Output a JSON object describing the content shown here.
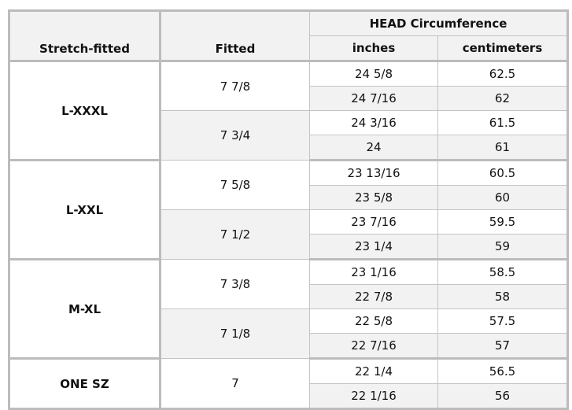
{
  "headers": {
    "stretch_fitted": "Stretch-fitted",
    "fitted": "Fitted",
    "head_circumference": "HEAD Circumference",
    "inches": "inches",
    "centimeters": "centimeters"
  },
  "groups": [
    {
      "stretch": "L-XXXL",
      "fitted": [
        {
          "size": "7 7/8",
          "rows": [
            [
              "24 5/8",
              "62.5"
            ],
            [
              "24 7/16",
              "62"
            ]
          ]
        },
        {
          "size": "7 3/4",
          "rows": [
            [
              "24 3/16",
              "61.5"
            ],
            [
              "24",
              "61"
            ]
          ]
        }
      ]
    },
    {
      "stretch": "L-XXL",
      "fitted": [
        {
          "size": "7 5/8",
          "rows": [
            [
              "23 13/16",
              "60.5"
            ],
            [
              "23 5/8",
              "60"
            ]
          ]
        },
        {
          "size": "7 1/2",
          "rows": [
            [
              "23 7/16",
              "59.5"
            ],
            [
              "23 1/4",
              "59"
            ]
          ]
        }
      ]
    },
    {
      "stretch": "M-XL",
      "fitted": [
        {
          "size": "7 3/8",
          "rows": [
            [
              "23 1/16",
              "58.5"
            ],
            [
              "22 7/8",
              "58"
            ]
          ]
        },
        {
          "size": "7 1/8",
          "rows": [
            [
              "22 5/8",
              "57.5"
            ],
            [
              "22 7/16",
              "57"
            ]
          ]
        }
      ]
    },
    {
      "stretch": "ONE SZ",
      "fitted": [
        {
          "size": "7",
          "rows": [
            [
              "22 1/4",
              "56.5"
            ],
            [
              "22 1/16",
              "56"
            ]
          ]
        }
      ]
    }
  ],
  "colors": {
    "border": "#bcbcbc",
    "shade": "#f2f2f2"
  }
}
